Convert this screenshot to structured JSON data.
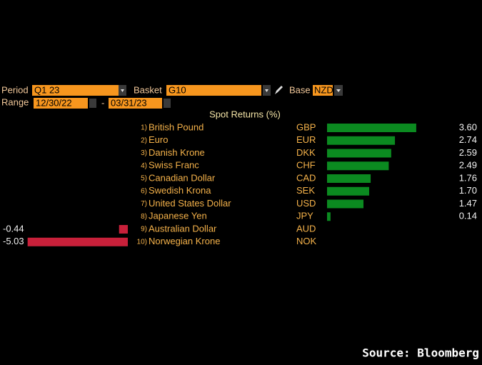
{
  "header": {
    "period_label": "Period",
    "period": "Q1 23",
    "basket_label": "Basket",
    "basket": "G10",
    "base_label": "Base",
    "base": "NZD",
    "range_label": "Range",
    "range_start": "12/30/22",
    "range_separator": "-",
    "range_end": "03/31/23"
  },
  "chart_data": {
    "type": "bar",
    "title": "Spot Returns (%)",
    "ranks": [
      "1)",
      "2)",
      "3)",
      "4)",
      "5)",
      "6)",
      "7)",
      "8)",
      "9)",
      "10)"
    ],
    "categories": [
      "British Pound",
      "Euro",
      "Danish Krone",
      "Swiss Franc",
      "Canadian Dollar",
      "Swedish Krona",
      "United States Dollar",
      "Japanese Yen",
      "Australian Dollar",
      "Norwegian Krone"
    ],
    "codes": [
      "GBP",
      "EUR",
      "DKK",
      "CHF",
      "CAD",
      "SEK",
      "USD",
      "JPY",
      "AUD",
      "NOK"
    ],
    "values": [
      3.6,
      2.74,
      2.59,
      2.49,
      1.76,
      1.7,
      1.47,
      0.14,
      -0.44,
      -5.03
    ],
    "value_labels": [
      "3.60",
      "2.74",
      "2.59",
      "2.49",
      "1.76",
      "1.70",
      "1.47",
      "0.14",
      "-0.44",
      "-5.03"
    ],
    "positive_color": "#0b8a20",
    "negative_color": "#c8203a"
  },
  "source": "Source: Bloomberg"
}
